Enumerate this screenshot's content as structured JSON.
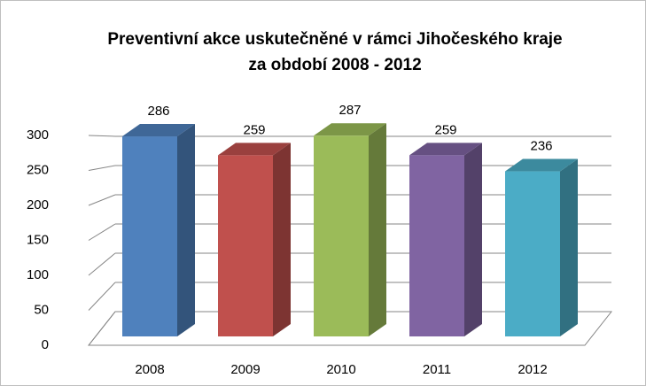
{
  "chart_data": {
    "type": "bar3d",
    "title": [
      "Preventivní akce uskutečněné v rámci Jihočeského kraje",
      "za období 2008 - 2012"
    ],
    "categories": [
      "2008",
      "2009",
      "2010",
      "2011",
      "2012"
    ],
    "values": [
      286,
      259,
      287,
      259,
      236
    ],
    "colors": [
      "#4f81bd",
      "#c0504d",
      "#9bbb59",
      "#8064a2",
      "#4bacc6"
    ],
    "ylim": [
      0,
      300
    ],
    "yticks": [
      0,
      50,
      100,
      150,
      200,
      250,
      300
    ],
    "grid": true
  }
}
